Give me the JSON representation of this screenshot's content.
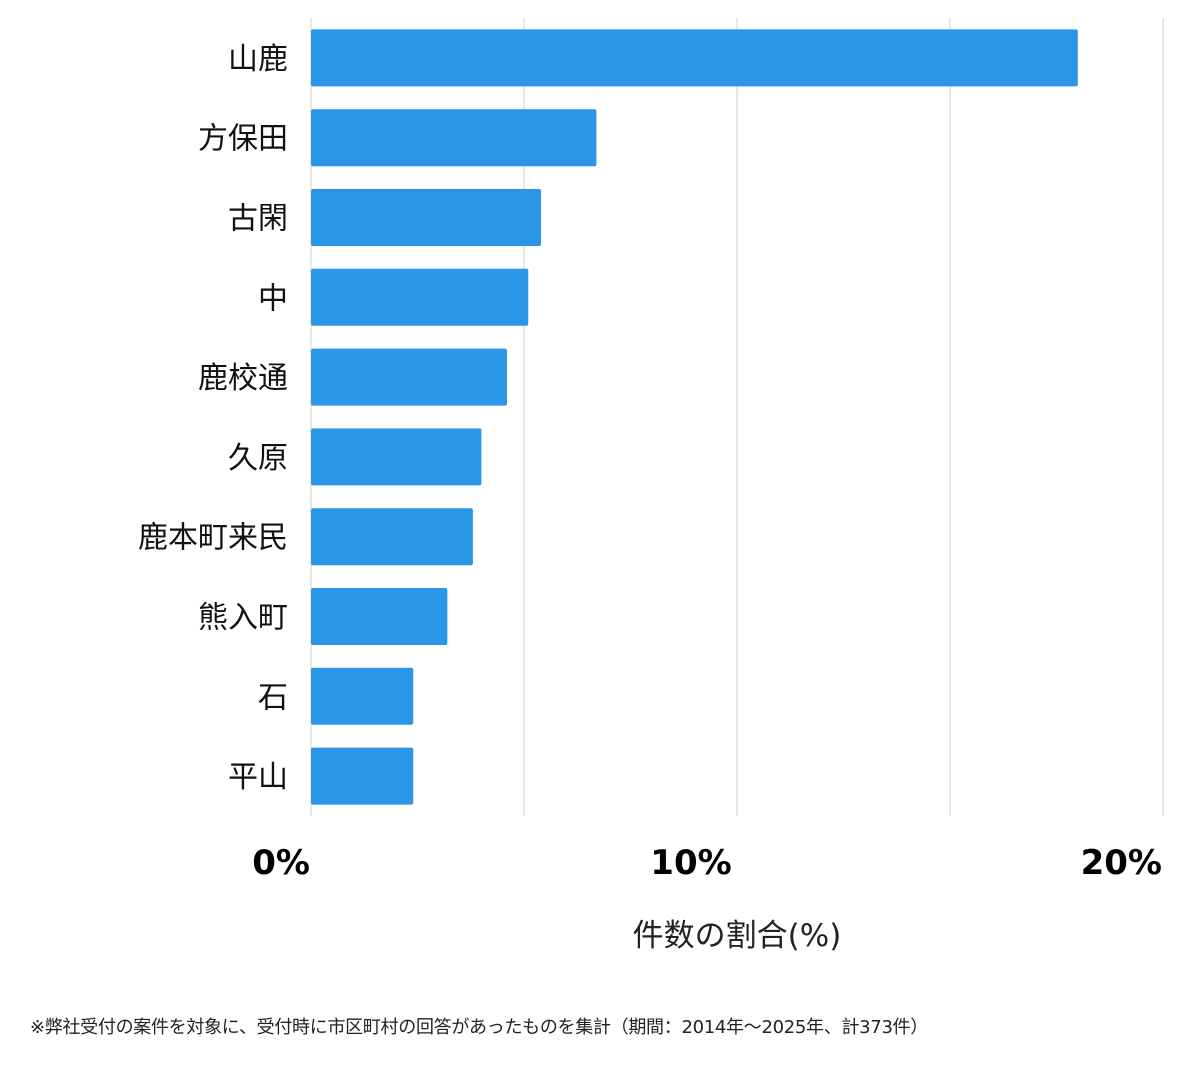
{
  "chart_data": {
    "type": "bar",
    "orientation": "horizontal",
    "categories": [
      "山鹿",
      "方保田",
      "古閑",
      "中",
      "鹿校通",
      "久原",
      "鹿本町来民",
      "熊入町",
      "石",
      "平山"
    ],
    "values": [
      18.0,
      6.7,
      5.4,
      5.1,
      4.6,
      4.0,
      3.8,
      3.2,
      2.4,
      2.4
    ],
    "xlabel": "件数の割合(%)",
    "ylabel": "",
    "xlim": [
      0,
      20
    ],
    "x_ticks": [
      0,
      10,
      20
    ],
    "x_tick_labels": [
      "0%",
      "10%",
      "20%"
    ],
    "grid": true,
    "bar_color": "#2b95e8"
  },
  "footnote": "※弊社受付の案件を対象に、受付時に市区町村の回答があったものを集計（期間：2014年～2025年、計373件）"
}
